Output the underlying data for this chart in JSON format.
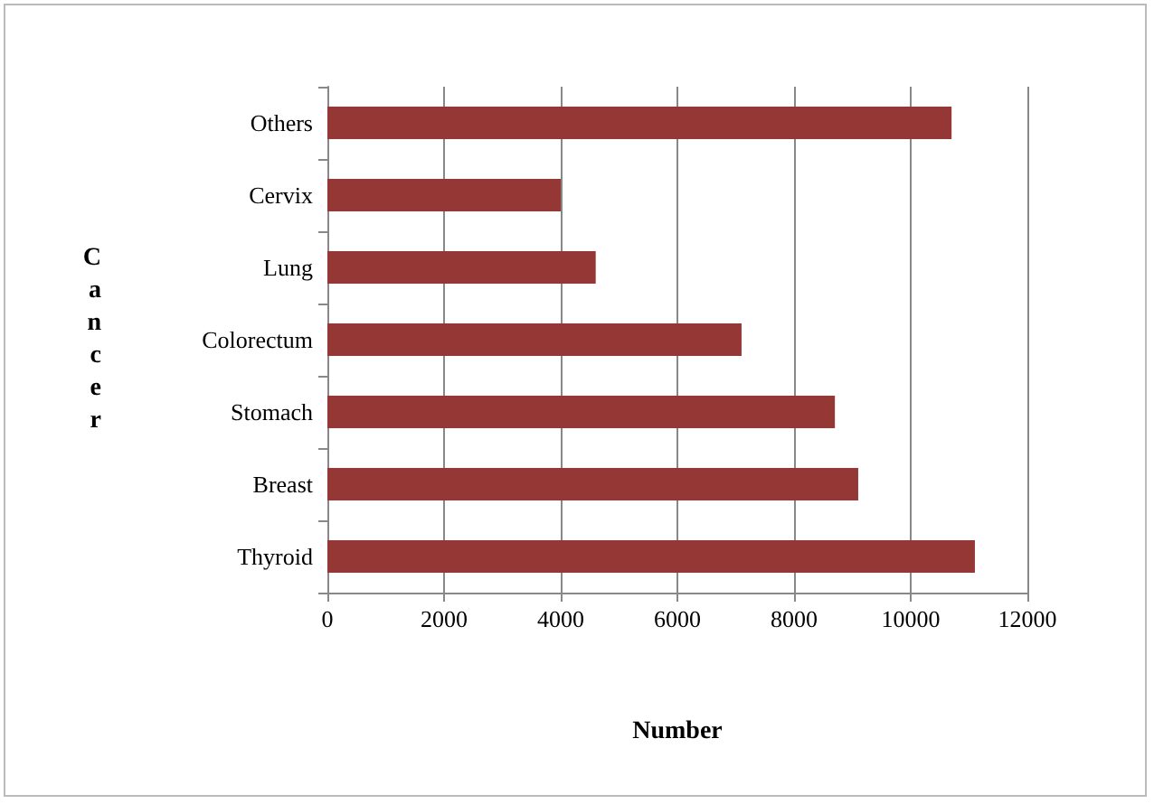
{
  "chart_data": {
    "type": "bar",
    "orientation": "horizontal",
    "xlabel": "Number",
    "ylabel": "Cancer",
    "categories": [
      "Others",
      "Cervix",
      "Lung",
      "Colorectum",
      "Stomach",
      "Breast",
      "Thyroid"
    ],
    "values": [
      10700,
      4000,
      4600,
      7100,
      8700,
      9100,
      11100
    ],
    "color": "#953735",
    "xlim": [
      0,
      12000
    ],
    "xticks": [
      0,
      2000,
      4000,
      6000,
      8000,
      10000,
      12000
    ],
    "grid": "x"
  }
}
